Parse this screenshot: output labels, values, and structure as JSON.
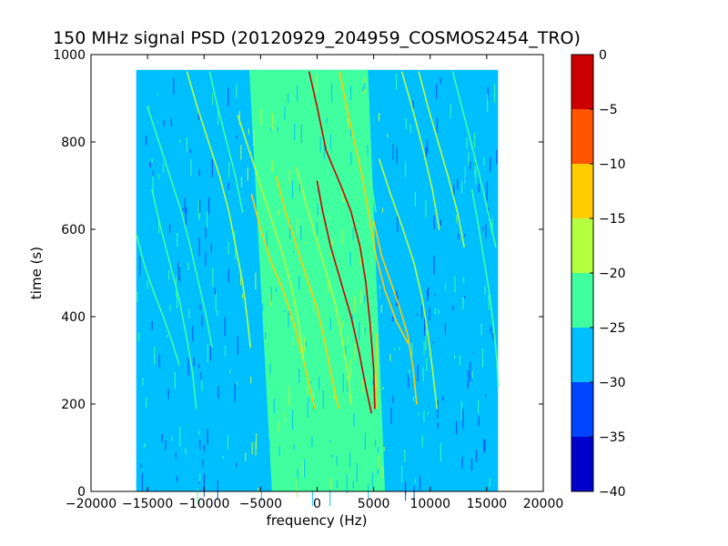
{
  "chart_data": {
    "type": "heatmap",
    "title": "150 MHz signal PSD (20120929_204959_COSMOS2454_TRO)",
    "xlabel": "frequency (Hz)",
    "ylabel": "time (s)",
    "xlim": [
      -20000,
      20000
    ],
    "ylim": [
      0,
      1000
    ],
    "xticks": [
      -20000,
      -15000,
      -10000,
      -5000,
      0,
      5000,
      10000,
      15000,
      20000
    ],
    "xtick_labels": [
      "−20000",
      "−15000",
      "−10000",
      "−5000",
      "0",
      "5000",
      "10000",
      "15000",
      "20000"
    ],
    "yticks": [
      0,
      200,
      400,
      600,
      800,
      1000
    ],
    "ytick_labels": [
      "0",
      "200",
      "400",
      "600",
      "800",
      "1000"
    ],
    "data_extent": {
      "freq": [
        -16000,
        16000
      ],
      "time": [
        0,
        965
      ]
    },
    "colormap": "jet",
    "colorbar": {
      "range": [
        -40,
        0
      ],
      "ticks": [
        0,
        -5,
        -10,
        -15,
        -20,
        -25,
        -30,
        -35,
        -40
      ],
      "tick_labels": [
        "0",
        "−5",
        "−10",
        "−15",
        "−20",
        "−25",
        "−30",
        "−35",
        "−40"
      ],
      "levels": [
        {
          "from": -40,
          "to": -35,
          "color": "#0000cd"
        },
        {
          "from": -35,
          "to": -30,
          "color": "#0044ff"
        },
        {
          "from": -30,
          "to": -25,
          "color": "#00bfff"
        },
        {
          "from": -25,
          "to": -20,
          "color": "#40ff9f"
        },
        {
          "from": -20,
          "to": -15,
          "color": "#b4ff40"
        },
        {
          "from": -15,
          "to": -10,
          "color": "#ffcc00"
        },
        {
          "from": -10,
          "to": -5,
          "color": "#ff5500"
        },
        {
          "from": -5,
          "to": 0,
          "color": "#cd0000"
        }
      ]
    },
    "background_level": {
      "outer": -27.5,
      "inner": -22.5,
      "inner_band_hz": [
        [
          -6000,
          4500
        ],
        [
          -4000,
          6000
        ]
      ]
    },
    "traces": [
      {
        "level": -2,
        "points": [
          [
            -700,
            960
          ],
          [
            0,
            880
          ],
          [
            800,
            780
          ],
          [
            2100,
            700
          ],
          [
            3000,
            640
          ],
          [
            3800,
            560
          ],
          [
            4300,
            480
          ],
          [
            4700,
            380
          ],
          [
            5000,
            280
          ],
          [
            5100,
            190
          ]
        ]
      },
      {
        "level": -2,
        "points": [
          [
            0,
            710
          ],
          [
            500,
            640
          ],
          [
            1200,
            560
          ],
          [
            2100,
            480
          ],
          [
            3000,
            400
          ],
          [
            3700,
            320
          ],
          [
            4300,
            240
          ],
          [
            4800,
            180
          ]
        ]
      },
      {
        "level": -12,
        "points": [
          [
            2000,
            960
          ],
          [
            2600,
            880
          ],
          [
            3300,
            800
          ],
          [
            4000,
            720
          ],
          [
            4600,
            630
          ],
          [
            5200,
            540
          ],
          [
            6000,
            460
          ],
          [
            7000,
            390
          ],
          [
            8000,
            340
          ]
        ]
      },
      {
        "level": -12,
        "points": [
          [
            -3600,
            720
          ],
          [
            -2800,
            640
          ],
          [
            -1800,
            560
          ],
          [
            -800,
            480
          ],
          [
            0,
            420
          ],
          [
            700,
            340
          ],
          [
            1300,
            260
          ],
          [
            1900,
            190
          ]
        ]
      },
      {
        "level": -12,
        "points": [
          [
            -5800,
            680
          ],
          [
            -5000,
            600
          ],
          [
            -4000,
            520
          ],
          [
            -3000,
            460
          ],
          [
            -2000,
            380
          ],
          [
            -1200,
            300
          ],
          [
            -500,
            220
          ],
          [
            -200,
            190
          ]
        ]
      },
      {
        "level": -15,
        "points": [
          [
            -1800,
            740
          ],
          [
            -1000,
            660
          ],
          [
            -200,
            590
          ],
          [
            700,
            510
          ],
          [
            1600,
            430
          ],
          [
            2200,
            350
          ],
          [
            2700,
            270
          ],
          [
            3000,
            200
          ]
        ]
      },
      {
        "level": -17,
        "points": [
          [
            -7000,
            860
          ],
          [
            -6000,
            780
          ],
          [
            -5000,
            700
          ],
          [
            -4000,
            620
          ],
          [
            -3000,
            540
          ],
          [
            -2200,
            460
          ],
          [
            -1600,
            380
          ],
          [
            -1200,
            300
          ]
        ]
      },
      {
        "level": -14,
        "points": [
          [
            5000,
            620
          ],
          [
            5700,
            540
          ],
          [
            6500,
            480
          ],
          [
            7300,
            420
          ],
          [
            8000,
            360
          ],
          [
            8500,
            280
          ],
          [
            8800,
            200
          ]
        ]
      },
      {
        "level": -17,
        "points": [
          [
            5500,
            760
          ],
          [
            6500,
            680
          ],
          [
            7600,
            600
          ],
          [
            8600,
            520
          ],
          [
            9300,
            440
          ],
          [
            9800,
            360
          ],
          [
            10200,
            280
          ],
          [
            10600,
            190
          ]
        ]
      },
      {
        "level": -18,
        "points": [
          [
            9000,
            960
          ],
          [
            9800,
            880
          ],
          [
            10700,
            800
          ],
          [
            11600,
            720
          ],
          [
            12400,
            640
          ],
          [
            13000,
            560
          ]
        ]
      },
      {
        "level": -18,
        "points": [
          [
            7500,
            960
          ],
          [
            8500,
            870
          ],
          [
            9400,
            780
          ],
          [
            10200,
            690
          ],
          [
            10800,
            600
          ]
        ]
      },
      {
        "level": -20,
        "points": [
          [
            12000,
            960
          ],
          [
            12800,
            880
          ],
          [
            13600,
            800
          ],
          [
            14400,
            720
          ],
          [
            15100,
            640
          ],
          [
            15800,
            560
          ]
        ]
      },
      {
        "level": -19,
        "points": [
          [
            -11500,
            960
          ],
          [
            -10600,
            880
          ],
          [
            -9600,
            800
          ],
          [
            -8600,
            720
          ],
          [
            -7800,
            640
          ],
          [
            -7200,
            560
          ],
          [
            -6600,
            480
          ],
          [
            -6200,
            400
          ],
          [
            -5900,
            330
          ]
        ]
      },
      {
        "level": -20,
        "points": [
          [
            -15000,
            880
          ],
          [
            -14000,
            800
          ],
          [
            -13000,
            720
          ],
          [
            -12000,
            640
          ],
          [
            -11200,
            560
          ],
          [
            -10500,
            480
          ],
          [
            -9800,
            400
          ],
          [
            -9300,
            330
          ]
        ]
      },
      {
        "level": -20,
        "points": [
          [
            -16000,
            590
          ],
          [
            -15300,
            520
          ],
          [
            -14500,
            460
          ],
          [
            -13600,
            400
          ],
          [
            -12800,
            340
          ],
          [
            -12200,
            290
          ]
        ]
      },
      {
        "level": -20,
        "points": [
          [
            -14600,
            690
          ],
          [
            -13800,
            600
          ],
          [
            -13000,
            520
          ],
          [
            -12200,
            440
          ],
          [
            -11600,
            360
          ],
          [
            -11000,
            270
          ],
          [
            -10700,
            190
          ]
        ]
      },
      {
        "level": -21,
        "points": [
          [
            -9500,
            960
          ],
          [
            -8800,
            880
          ],
          [
            -8000,
            800
          ],
          [
            -7200,
            720
          ],
          [
            -6600,
            640
          ]
        ]
      },
      {
        "level": -21,
        "points": [
          [
            3400,
            960
          ],
          [
            3800,
            880
          ],
          [
            4200,
            800
          ],
          [
            4700,
            720
          ],
          [
            5200,
            640
          ]
        ]
      },
      {
        "level": -22,
        "points": [
          [
            13700,
            690
          ],
          [
            14200,
            620
          ],
          [
            14700,
            540
          ],
          [
            15200,
            460
          ],
          [
            15600,
            380
          ],
          [
            15900,
            300
          ],
          [
            16000,
            240
          ]
        ]
      },
      {
        "level": -12,
        "points": [
          [
            5300,
            360
          ],
          [
            5300,
            190
          ]
        ]
      }
    ]
  }
}
